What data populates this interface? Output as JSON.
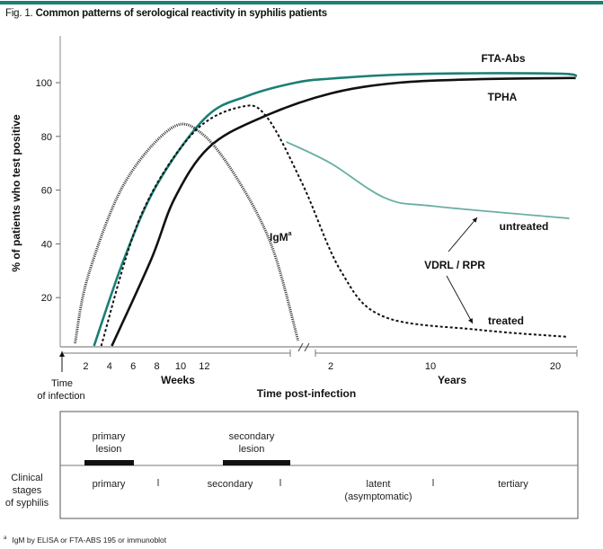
{
  "figure": {
    "label": "Fig. 1.",
    "title": "Common patterns of serological reactivity in syphilis patients",
    "footnote_marker": "a",
    "footnote": "IgM by ELISA or FTA-ABS 195 or immunoblot"
  },
  "chart_data": {
    "type": "line",
    "title": "Common patterns of serological reactivity in syphilis patients",
    "ylabel": "% of patients who test positive",
    "xlabel": "Time post-infection",
    "x_segments": [
      {
        "unit_label": "Weeks",
        "ticks": [
          "2",
          "4",
          "6",
          "8",
          "10",
          "12"
        ]
      },
      {
        "unit_label": "Years",
        "ticks": [
          "2",
          "10",
          "20"
        ]
      }
    ],
    "x_break": true,
    "origin_label": "Time of infection",
    "yticks": [
      "20",
      "40",
      "60",
      "80",
      "100"
    ],
    "ylim": [
      0,
      110
    ],
    "grid": false,
    "colors": {
      "teal": "#1a7f74",
      "light_teal": "#6aaea2",
      "black": "#111111"
    },
    "series": [
      {
        "name": "FTA-Abs",
        "style": "solid",
        "color": "#1a7f74",
        "weeks": [
          [
            2.7,
            2
          ],
          [
            5.2,
            34
          ],
          [
            8,
            62
          ],
          [
            12.1,
            87
          ],
          [
            15.6,
            95
          ],
          [
            19.7,
            100
          ]
        ],
        "years": [
          [
            2,
            101.5
          ],
          [
            7.5,
            103
          ],
          [
            14,
            103.5
          ],
          [
            20.5,
            103.3
          ],
          [
            21.7,
            102.5
          ]
        ]
      },
      {
        "name": "TPHA",
        "style": "solid",
        "color": "#111111",
        "weeks": [
          [
            4.2,
            2
          ],
          [
            7.5,
            34
          ],
          [
            9.5,
            57
          ],
          [
            12.4,
            76
          ],
          [
            16.8,
            87
          ]
        ],
        "years": [
          [
            2,
            96
          ],
          [
            7.5,
            100
          ],
          [
            14,
            101.3
          ],
          [
            20.4,
            101.7
          ],
          [
            21.6,
            101.7
          ]
        ]
      },
      {
        "name": "IgM",
        "name_superscript": "a",
        "style": "dotted",
        "color": "#333333",
        "weeks": [
          [
            1.1,
            3
          ],
          [
            2.2,
            28
          ],
          [
            5.2,
            62
          ],
          [
            9.2,
            83
          ],
          [
            11.8,
            81
          ],
          [
            14.8,
            64
          ],
          [
            17.7,
            39
          ],
          [
            19.9,
            4
          ]
        ],
        "years": []
      },
      {
        "name": "VDRL / RPR",
        "variant": "treated",
        "style": "dashed",
        "color": "#111111",
        "weeks": [
          [
            3.3,
            2
          ],
          [
            6.6,
            50
          ],
          [
            11,
            81
          ],
          [
            15.1,
            91
          ],
          [
            17.3,
            87
          ],
          [
            20.3,
            62
          ]
        ],
        "years": [
          [
            2.8,
            30
          ],
          [
            6.2,
            13
          ],
          [
            13.9,
            8
          ],
          [
            21,
            5.4
          ]
        ]
      },
      {
        "name": "VDRL / RPR",
        "variant": "untreated",
        "style": "solid",
        "color": "#6aaea2",
        "weeks": [
          [
            18.9,
            78
          ]
        ],
        "years": [
          [
            2,
            70
          ],
          [
            6.4,
            57
          ],
          [
            10.3,
            54
          ],
          [
            21.1,
            49.5
          ]
        ]
      }
    ],
    "annotations": {
      "fta": "FTA-Abs",
      "tpha": "TPHA",
      "igm": "IgM",
      "igm_sup": "a",
      "vdrl": "VDRL / RPR",
      "untreated": "untreated",
      "treated": "treated"
    }
  },
  "stages": {
    "row_label": [
      "Clinical",
      "stages",
      "of syphilis"
    ],
    "lesions": [
      {
        "lines": [
          "primary",
          "lesion"
        ]
      },
      {
        "lines": [
          "secondary",
          "lesion"
        ]
      }
    ],
    "stages": [
      {
        "lines": [
          "primary"
        ]
      },
      {
        "lines": [
          "secondary"
        ]
      },
      {
        "lines": [
          "latent",
          "(asymptomatic)"
        ]
      },
      {
        "lines": [
          "tertiary"
        ]
      }
    ]
  }
}
